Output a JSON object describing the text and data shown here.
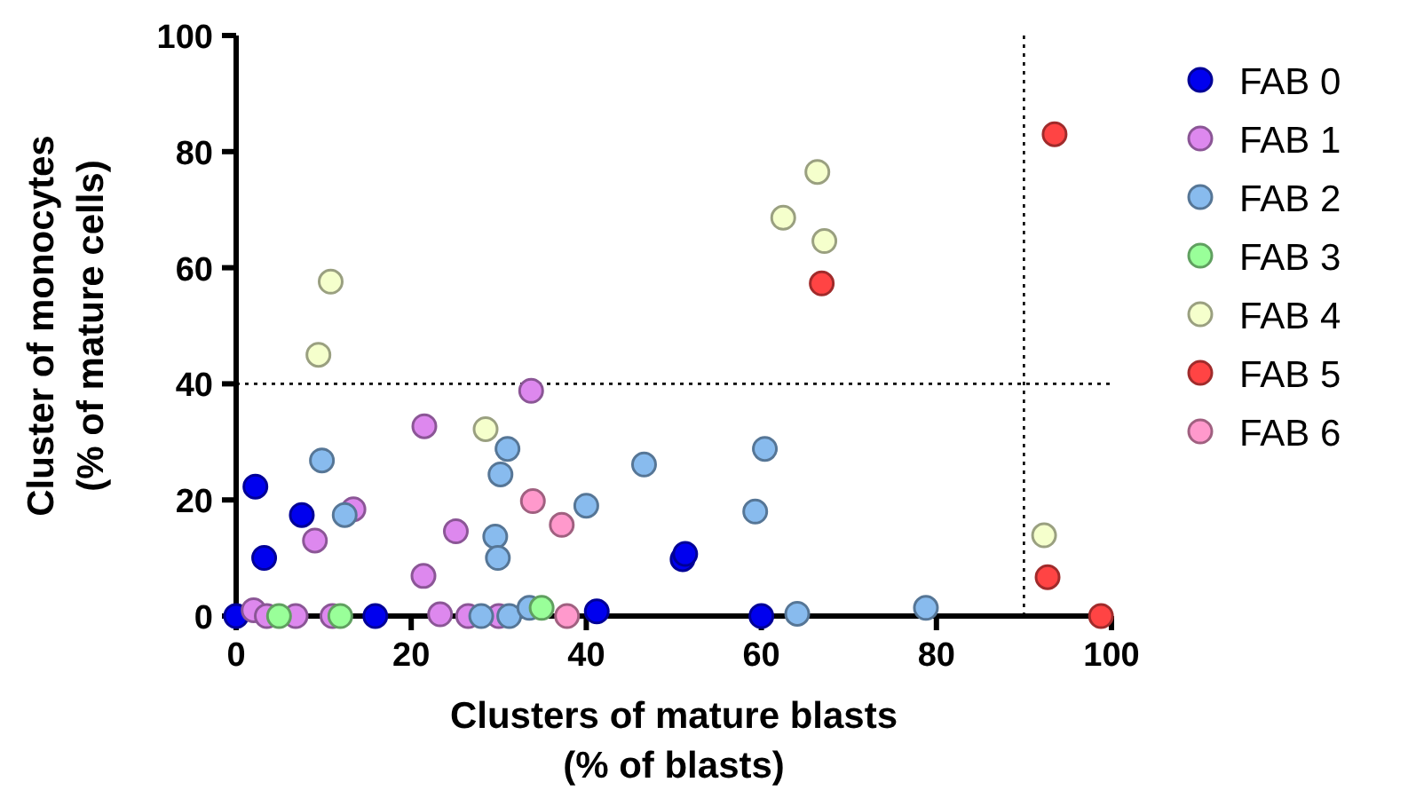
{
  "chart_data": {
    "type": "scatter",
    "xlabel": "Clusters of mature blasts\n(% of blasts)",
    "ylabel": "Cluster of monocytes\n(% of mature cells)",
    "xlim": [
      0,
      100
    ],
    "ylim": [
      0,
      100
    ],
    "xticks": [
      0,
      20,
      40,
      60,
      80,
      100
    ],
    "yticks": [
      0,
      20,
      40,
      60,
      80,
      100
    ],
    "grid": false,
    "legend": "right",
    "marker": "circle",
    "ref_lines": [
      {
        "axis": "x",
        "value": 90,
        "line_style": "dotted",
        "color": "#000000"
      },
      {
        "axis": "y",
        "value": 40,
        "line_style": "dotted",
        "color": "#000000"
      }
    ],
    "series": [
      {
        "name": "FAB 0",
        "color": "#0000ee",
        "x": [
          0,
          2.2,
          3.2,
          7.5,
          15.9,
          41.2,
          51,
          51.3,
          60
        ],
        "values": [
          0,
          22.3,
          10,
          17.4,
          0,
          0.8,
          9.8,
          10.7,
          0
        ]
      },
      {
        "name": "FAB 1",
        "color": "#dd88ee",
        "x": [
          2,
          3.5,
          6.8,
          11,
          13.4,
          9,
          25.1,
          21.4,
          21.5,
          33.7,
          23.3,
          26.5,
          30
        ],
        "values": [
          1,
          0,
          0,
          0,
          18.4,
          13,
          14.6,
          6.9,
          32.7,
          38.8,
          0.3,
          0,
          0
        ]
      },
      {
        "name": "FAB 2",
        "color": "#88bbee",
        "x": [
          9.8,
          12.4,
          31,
          30.2,
          29.6,
          29.9,
          46.6,
          40,
          28,
          31.2,
          33.5,
          60.4,
          59.3,
          64.1,
          78.8
        ],
        "values": [
          26.8,
          17.4,
          28.8,
          24.4,
          13.7,
          10,
          26.1,
          19,
          0,
          0,
          1.4,
          28.8,
          18,
          0.4,
          1.4
        ]
      },
      {
        "name": "FAB 3",
        "color": "#99ff99",
        "x": [
          4.9,
          11.9,
          34.9
        ],
        "values": [
          0,
          0,
          1.4
        ]
      },
      {
        "name": "FAB 4",
        "color": "#f5ffcc",
        "x": [
          10.8,
          9.4,
          28.5,
          66.4,
          62.5,
          67.2,
          92.3
        ],
        "values": [
          57.6,
          45,
          32.2,
          76.5,
          68.6,
          64.6,
          13.9
        ]
      },
      {
        "name": "FAB 5",
        "color": "#ff4444",
        "x": [
          93.5,
          66.9,
          92.7,
          98.8
        ],
        "values": [
          83,
          57.3,
          6.7,
          0
        ]
      },
      {
        "name": "FAB 6",
        "color": "#ff99cc",
        "x": [
          33.9,
          37.2,
          37.8
        ],
        "values": [
          19.8,
          15.7,
          0
        ]
      }
    ]
  }
}
